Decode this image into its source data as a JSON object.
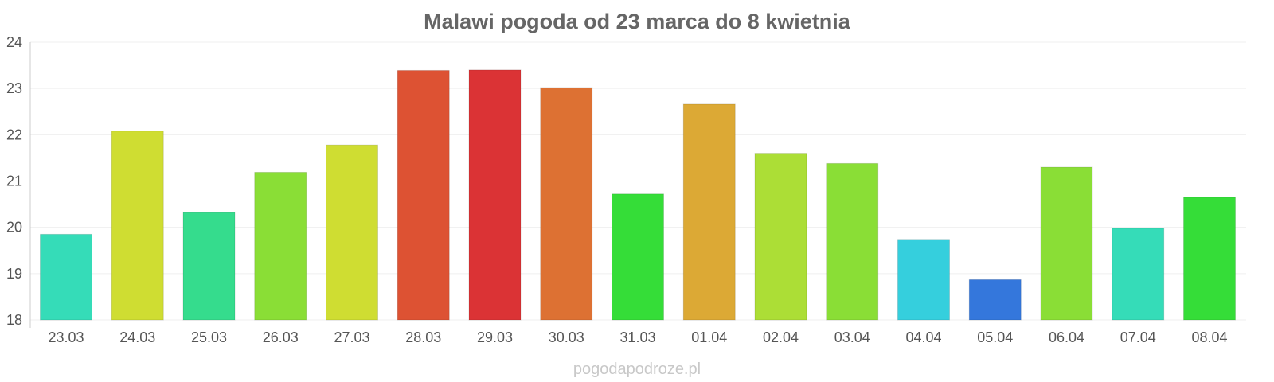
{
  "chart_data": {
    "type": "bar",
    "title": "Malawi pogoda od 23 marca do 8 kwietnia",
    "xlabel": "",
    "ylabel": "",
    "ylim": [
      18,
      24
    ],
    "yticks": [
      18,
      19,
      20,
      21,
      22,
      23,
      24
    ],
    "grid": true,
    "categories": [
      "23.03",
      "24.03",
      "25.03",
      "26.03",
      "27.03",
      "28.03",
      "29.03",
      "30.03",
      "31.03",
      "01.04",
      "02.04",
      "03.04",
      "04.04",
      "05.04",
      "06.04",
      "07.04",
      "08.04"
    ],
    "values": [
      19.85,
      22.08,
      20.32,
      21.19,
      21.78,
      23.39,
      23.4,
      23.02,
      20.72,
      22.66,
      21.6,
      21.38,
      19.74,
      18.87,
      21.3,
      19.98,
      20.65
    ],
    "colors": [
      "#35dcb8",
      "#cfdd32",
      "#35dc8d",
      "#8ade36",
      "#cfdd32",
      "#dd5233",
      "#db3335",
      "#dd7133",
      "#35dd38",
      "#dca935",
      "#acde36",
      "#8ade36",
      "#35cfdd",
      "#3477dc",
      "#8ade36",
      "#35dcb8",
      "#35dd38"
    ]
  },
  "footer": {
    "watermark": "pogodapodroze.pl"
  }
}
